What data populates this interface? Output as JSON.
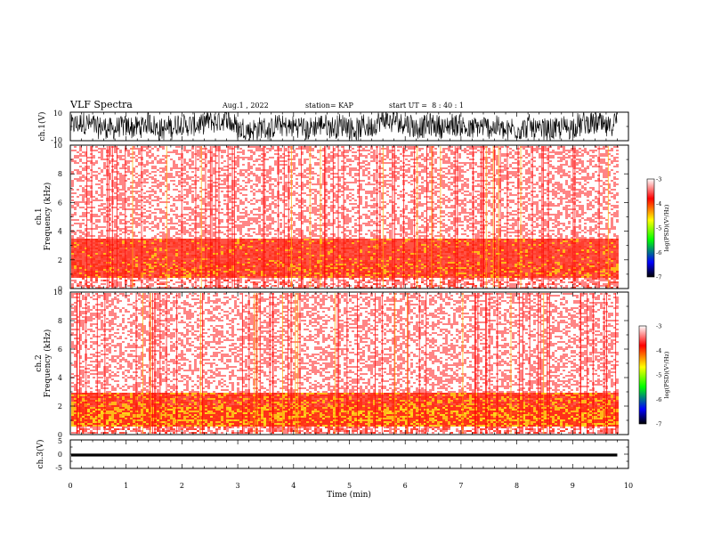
{
  "header": {
    "title": "VLF Spectra",
    "date": "Aug.1 , 2022",
    "station": "station= KAP",
    "start": "start UT =  8 : 40 : 1"
  },
  "chart_data": [
    {
      "type": "line",
      "panel": "ch1-waveform",
      "ylabel": "ch.1(V)",
      "ylim": [
        -10,
        10
      ],
      "yticks": [
        "10",
        "-10"
      ],
      "xlim": [
        0,
        10
      ],
      "data_extent": [
        0,
        9.8
      ],
      "color": "#000000"
    },
    {
      "type": "heatmap",
      "panel": "ch1-spectrogram",
      "ylabel_channel": "ch.1",
      "ylabel": "Frequency (kHz)",
      "ylim": [
        0,
        10
      ],
      "yticks": [
        "0",
        "2",
        "4",
        "6",
        "8",
        "10"
      ],
      "xlim": [
        0,
        10
      ],
      "data_extent": [
        0,
        9.8
      ],
      "bands": [
        {
          "f0": 0.0,
          "f1": 0.8,
          "level": -3.2
        },
        {
          "f0": 0.8,
          "f1": 1.7,
          "level": -4.2
        },
        {
          "f0": 1.7,
          "f1": 3.5,
          "level": -4.0
        },
        {
          "f0": 3.5,
          "f1": 10.0,
          "level": -3.0
        }
      ],
      "colorbar": {
        "label": "log(PSD)(V²/Hz)",
        "range": [
          -7,
          -3
        ],
        "ticks": [
          "-3",
          "-4",
          "-5",
          "-6",
          "-7"
        ],
        "colors": [
          "#ffffff",
          "#ff0000",
          "#ffff00",
          "#00ff00",
          "#0000ff",
          "#000000"
        ]
      }
    },
    {
      "type": "heatmap",
      "panel": "ch2-spectrogram",
      "ylabel_channel": "ch.2",
      "ylabel": "Frequency (kHz)",
      "ylim": [
        0,
        10
      ],
      "yticks": [
        "0",
        "2",
        "4",
        "6",
        "8",
        "10"
      ],
      "xlim": [
        0,
        10
      ],
      "data_extent": [
        0,
        9.8
      ],
      "bands": [
        {
          "f0": 0.0,
          "f1": 0.6,
          "level": -3.3
        },
        {
          "f0": 0.6,
          "f1": 2.0,
          "level": -4.8
        },
        {
          "f0": 2.0,
          "f1": 2.9,
          "level": -4.3
        },
        {
          "f0": 2.9,
          "f1": 10.0,
          "level": -3.0
        }
      ],
      "colorbar": {
        "label": "log(PSD)(V²/Hz)",
        "range": [
          -7,
          -3
        ],
        "ticks": [
          "-3",
          "-4",
          "-5",
          "-6",
          "-7"
        ],
        "colors": [
          "#ffffff",
          "#ff0000",
          "#ffff00",
          "#00ff00",
          "#0000ff",
          "#000000"
        ]
      }
    },
    {
      "type": "line",
      "panel": "ch3-waveform",
      "ylabel": "ch.3(V)",
      "ylim": [
        -5,
        5
      ],
      "yticks": [
        "5",
        "0",
        "-5"
      ],
      "xlim": [
        0,
        10
      ],
      "data_extent": [
        0,
        9.8
      ],
      "level_v": -0.3,
      "amplitude_v": 0.5,
      "color": "#000000",
      "xlabel": "Time (min)",
      "xticks": [
        "0",
        "1",
        "2",
        "3",
        "4",
        "5",
        "6",
        "7",
        "8",
        "9",
        "10"
      ]
    }
  ]
}
